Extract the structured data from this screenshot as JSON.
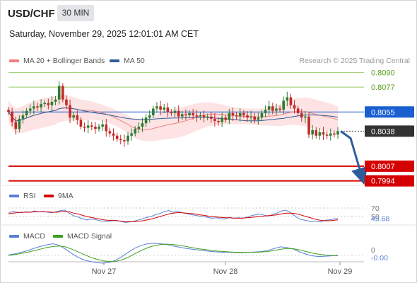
{
  "header": {
    "symbol": "USD/CHF",
    "timeframe": "30 MIN",
    "datetime": "Saturday, November 29, 2025 12:01:01 AM CET",
    "credit": "Research © 2025 Trading Central"
  },
  "colors": {
    "ma20": "#f08080",
    "ma50": "#2f5d9a",
    "band_fill": "#fde3e3",
    "candle_up": "#2e7d32",
    "candle_down": "#c62828",
    "resistance": "#9ccc65",
    "pivot": "#1a5fd0",
    "current": "#333333",
    "support": "#d50000",
    "rsi": "#5b7fd6",
    "rsi_ma": "#d50000",
    "macd": "#5b7fd6",
    "macd_signal": "#3f9f1f",
    "arrow": "#2f5d9a"
  },
  "chart_data": [
    {
      "type": "candlestick",
      "panel": "price",
      "legend": [
        {
          "name": "MA 20 + Bollinger Bands",
          "color": "#f08080"
        },
        {
          "name": "MA 50",
          "color": "#2f5d9a"
        }
      ],
      "ylim": [
        0.799,
        0.8094
      ],
      "levels": [
        {
          "value": 0.809,
          "label": "0.8090",
          "kind": "resistance"
        },
        {
          "value": 0.8077,
          "label": "0.8077",
          "kind": "resistance"
        },
        {
          "value": 0.8055,
          "label": "0.8055",
          "kind": "pivot"
        },
        {
          "value": 0.8038,
          "label": "0.8038",
          "kind": "current"
        },
        {
          "value": 0.8007,
          "label": "0.8007",
          "kind": "support"
        },
        {
          "value": 0.7994,
          "label": "0.7994",
          "kind": "support"
        }
      ],
      "projection": {
        "from": 0.8038,
        "to": 0.7994,
        "direction": "down"
      },
      "closes": [
        0.8055,
        0.8046,
        0.804,
        0.8049,
        0.8052,
        0.8056,
        0.8058,
        0.806,
        0.8059,
        0.8062,
        0.8063,
        0.8061,
        0.8064,
        0.8066,
        0.8078,
        0.8066,
        0.8061,
        0.805,
        0.8052,
        0.8048,
        0.8042,
        0.8041,
        0.8043,
        0.8042,
        0.804,
        0.8042,
        0.8044,
        0.8038,
        0.8036,
        0.8034,
        0.8031,
        0.803,
        0.8029,
        0.8034,
        0.8036,
        0.804,
        0.8042,
        0.8045,
        0.805,
        0.8052,
        0.8058,
        0.806,
        0.8057,
        0.8059,
        0.8055,
        0.8054,
        0.8056,
        0.8051,
        0.8053,
        0.8052,
        0.8054,
        0.8052,
        0.8051,
        0.8052,
        0.805,
        0.8051,
        0.8049,
        0.8047,
        0.8046,
        0.805,
        0.8048,
        0.8054,
        0.8052,
        0.8051,
        0.8054,
        0.8052,
        0.805,
        0.8051,
        0.8048,
        0.805,
        0.8054,
        0.8057,
        0.806,
        0.8056,
        0.8058,
        0.8057,
        0.8065,
        0.8068,
        0.8061,
        0.8058,
        0.8054,
        0.805,
        0.8051,
        0.8035,
        0.8039,
        0.8034,
        0.8037,
        0.8035,
        0.8034,
        0.8036,
        0.8035,
        0.8038
      ]
    },
    {
      "type": "line",
      "panel": "rsi",
      "legend": [
        {
          "name": "RSI",
          "color": "#5b7fd6"
        },
        {
          "name": "9MA",
          "color": "#d50000"
        }
      ],
      "yticks": [
        "70",
        "50"
      ],
      "current_label": "45.68",
      "series": [
        {
          "name": "RSI",
          "values": [
            58,
            62,
            60,
            59,
            61,
            60,
            63,
            61,
            62,
            60,
            59,
            61,
            64,
            65,
            58,
            52,
            49,
            45,
            42,
            44,
            43,
            40,
            39,
            38,
            40,
            41,
            38,
            36,
            37,
            39,
            42,
            45,
            48,
            50,
            55,
            57,
            62,
            64,
            60,
            62,
            59,
            57,
            55,
            53,
            51,
            50,
            48,
            46,
            47,
            45,
            44,
            48,
            46,
            47,
            46,
            48,
            52,
            54,
            56,
            53,
            51,
            55,
            58,
            63,
            65,
            60,
            52,
            45,
            42,
            40,
            38,
            39,
            37,
            41,
            42,
            44,
            45.68
          ]
        },
        {
          "name": "9MA",
          "values": [
            56,
            58,
            59,
            60,
            60,
            60,
            61,
            61,
            61,
            61,
            60,
            60,
            61,
            62,
            61,
            58,
            56,
            53,
            50,
            48,
            46,
            44,
            42,
            41,
            41,
            40,
            39,
            38,
            38,
            38,
            39,
            40,
            42,
            44,
            47,
            50,
            53,
            56,
            58,
            59,
            59,
            58,
            57,
            56,
            54,
            53,
            51,
            50,
            49,
            48,
            47,
            47,
            46,
            46,
            46,
            47,
            48,
            49,
            50,
            51,
            52,
            53,
            54,
            56,
            58,
            58,
            57,
            55,
            52,
            49,
            46,
            43,
            41,
            40,
            40,
            41,
            42
          ]
        }
      ]
    },
    {
      "type": "line",
      "panel": "macd",
      "legend": [
        {
          "name": "MACD",
          "color": "#5b7fd6"
        },
        {
          "name": "MACD Signal",
          "color": "#3f9f1f"
        }
      ],
      "yticks": [
        "0"
      ],
      "current_label": "-0.00",
      "x_labels": [
        "Nov 27",
        "Nov 28",
        "Nov 29"
      ],
      "series": [
        {
          "name": "MACD",
          "values": [
            0.1,
            0.4,
            0.8,
            1.2,
            1.8,
            2.3,
            2.7,
            3.0,
            2.6,
            1.6,
            0.5,
            -0.5,
            -1.2,
            -1.6,
            -1.9,
            -2.0,
            -1.8,
            -1.2,
            -0.2,
            0.9,
            1.9,
            2.6,
            3.0,
            3.1,
            3.0,
            2.8,
            2.4,
            2.1,
            1.8,
            1.6,
            1.4,
            1.2,
            1.0,
            0.9,
            0.8,
            0.8,
            0.7,
            0.7,
            0.8,
            0.9,
            1.0,
            1.3,
            1.8,
            2.2,
            2.0,
            1.6,
            0.9,
            0.3,
            -0.1,
            -0.3,
            -0.2,
            -0.1,
            0.0
          ]
        },
        {
          "name": "MACD Signal",
          "values": [
            0.0,
            0.2,
            0.5,
            0.8,
            1.2,
            1.6,
            2.0,
            2.3,
            2.4,
            2.2,
            1.6,
            0.9,
            0.2,
            -0.5,
            -1.0,
            -1.4,
            -1.6,
            -1.5,
            -1.1,
            -0.4,
            0.5,
            1.3,
            2.0,
            2.5,
            2.8,
            2.9,
            2.8,
            2.6,
            2.3,
            2.0,
            1.7,
            1.5,
            1.3,
            1.1,
            1.0,
            0.9,
            0.8,
            0.8,
            0.8,
            0.8,
            0.9,
            1.0,
            1.3,
            1.6,
            1.8,
            1.7,
            1.4,
            1.0,
            0.6,
            0.3,
            0.1,
            0.0,
            -0.1
          ]
        }
      ]
    }
  ]
}
